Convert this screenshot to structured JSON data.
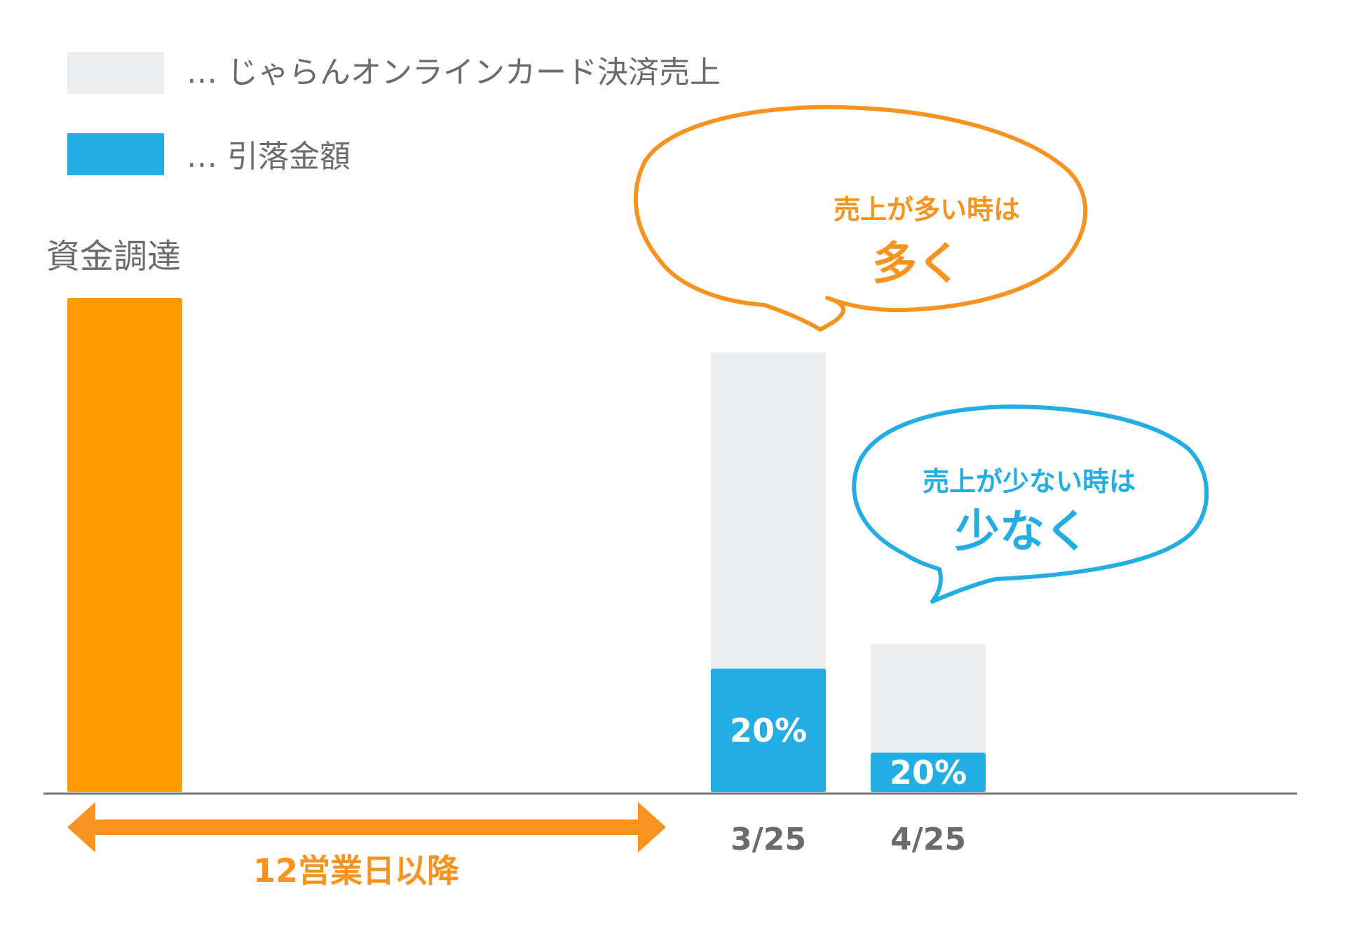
{
  "colors": {
    "funding": "#FF9900",
    "sales": "#EBECEE",
    "debit": "#22AEE4",
    "orange_text": "#F7931E",
    "blue_text": "#22AEE4",
    "text_gray": "#6b6b6b",
    "axis": "#777777"
  },
  "legend": [
    {
      "label": "… じゃらんオンラインカード決済売上",
      "color": "#EBECEE",
      "icon": "legend-swatch-sales"
    },
    {
      "label": "… 引落金額",
      "color": "#22AEE4",
      "icon": "legend-swatch-debit"
    }
  ],
  "funding_label": "資金調達",
  "arrow": {
    "label": "12営業日以降",
    "icon": "double-arrow-icon"
  },
  "bubbles": [
    {
      "line1": "売上が多い時は",
      "line2": "多く",
      "color": "#F7931E",
      "icon": "speech-bubble-icon"
    },
    {
      "line1": "売上が少ない時は",
      "line2": "少なく",
      "color": "#22AEE4",
      "icon": "speech-bubble-icon"
    }
  ],
  "chart_data": {
    "type": "bar",
    "categories": [
      "",
      "3/25",
      "4/25"
    ],
    "ylim": [
      0,
      100
    ],
    "grid": false,
    "legend_position": "top-left",
    "series": [
      {
        "name": "資金調達",
        "values": [
          100,
          0,
          0
        ]
      },
      {
        "name": "じゃらんオンラインカード決済売上",
        "values": [
          0,
          89,
          30
        ]
      },
      {
        "name": "引落金額",
        "values": [
          0,
          25,
          8
        ],
        "labels": [
          "",
          "20%",
          "20%"
        ]
      }
    ]
  }
}
